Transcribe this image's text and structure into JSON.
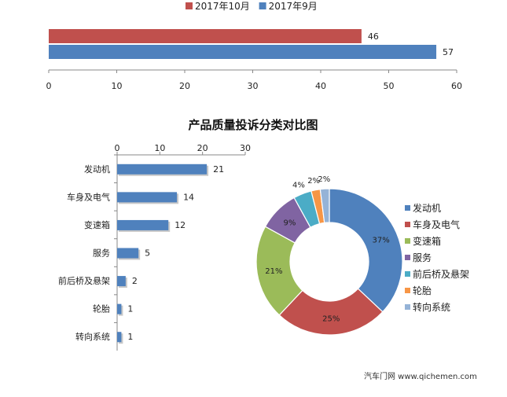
{
  "chart_data": [
    {
      "type": "bar",
      "orientation": "horizontal",
      "title": "",
      "series": [
        {
          "name": "2017年10月",
          "values": [
            46
          ],
          "color": "#c0504d"
        },
        {
          "name": "2017年9月",
          "values": [
            57
          ],
          "color": "#4f81bd"
        }
      ],
      "xlim": [
        0,
        60
      ],
      "xticks": [
        "0",
        "10",
        "20",
        "30",
        "40",
        "50",
        "60"
      ],
      "legend": "top"
    },
    {
      "type": "bar",
      "orientation": "horizontal",
      "title": "产品质量投诉分类对比图",
      "categories": [
        "发动机",
        "车身及电气",
        "变速箱",
        "服务",
        "前后桥及悬架",
        "轮胎",
        "转向系统"
      ],
      "values": [
        21,
        14,
        12,
        5,
        2,
        1,
        1
      ],
      "xlim": [
        0,
        30
      ],
      "xticks": [
        "0",
        "10",
        "20",
        "30"
      ],
      "axis_position": "top",
      "color": "#4f81bd"
    },
    {
      "type": "pie",
      "donut": true,
      "labels": [
        "发动机",
        "车身及电气",
        "变速箱",
        "服务",
        "前后桥及悬架",
        "轮胎",
        "转向系统"
      ],
      "values": [
        37,
        25,
        21,
        9,
        4,
        2,
        2
      ],
      "value_labels": [
        "37%",
        "25%",
        "21%",
        "9%",
        "4%",
        "2%",
        "2%"
      ],
      "colors": [
        "#4f81bd",
        "#c0504d",
        "#9bbb59",
        "#8064a2",
        "#4bacc6",
        "#f79646",
        "#95b3d7"
      ],
      "legend": "right"
    }
  ],
  "footer": {
    "text": "汽车门网 www.qichemen.com"
  }
}
